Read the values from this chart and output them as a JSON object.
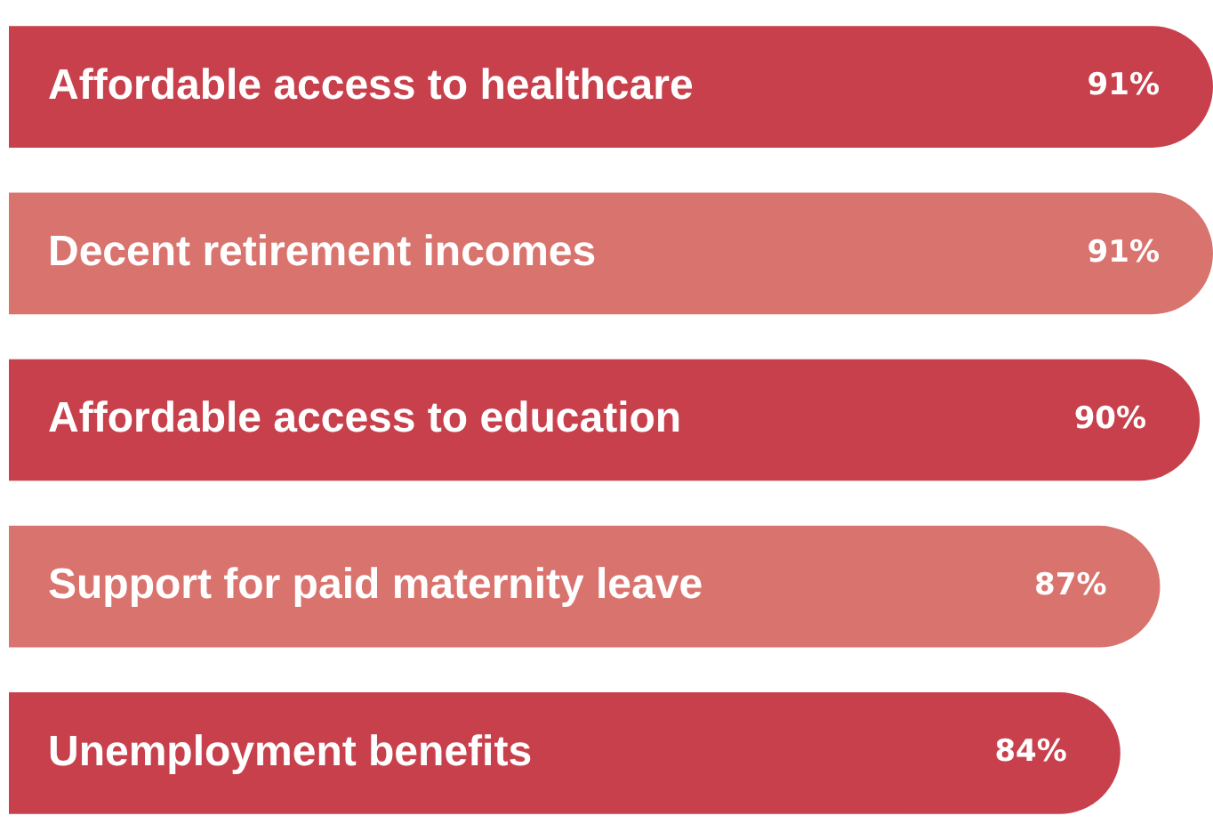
{
  "chart_data": {
    "type": "bar",
    "orientation": "horizontal",
    "categories": [
      "Affordable access to healthcare",
      "Decent retirement incomes",
      "Affordable access to education",
      "Support for paid maternity leave",
      "Unemployment benefits"
    ],
    "values": [
      91,
      91,
      90,
      87,
      84
    ],
    "colors": [
      "#c8404c",
      "#d9736e",
      "#c8404c",
      "#d9736e",
      "#c8404c"
    ],
    "value_labels": [
      "91%",
      "91%",
      "90%",
      "87%",
      "84%"
    ]
  }
}
